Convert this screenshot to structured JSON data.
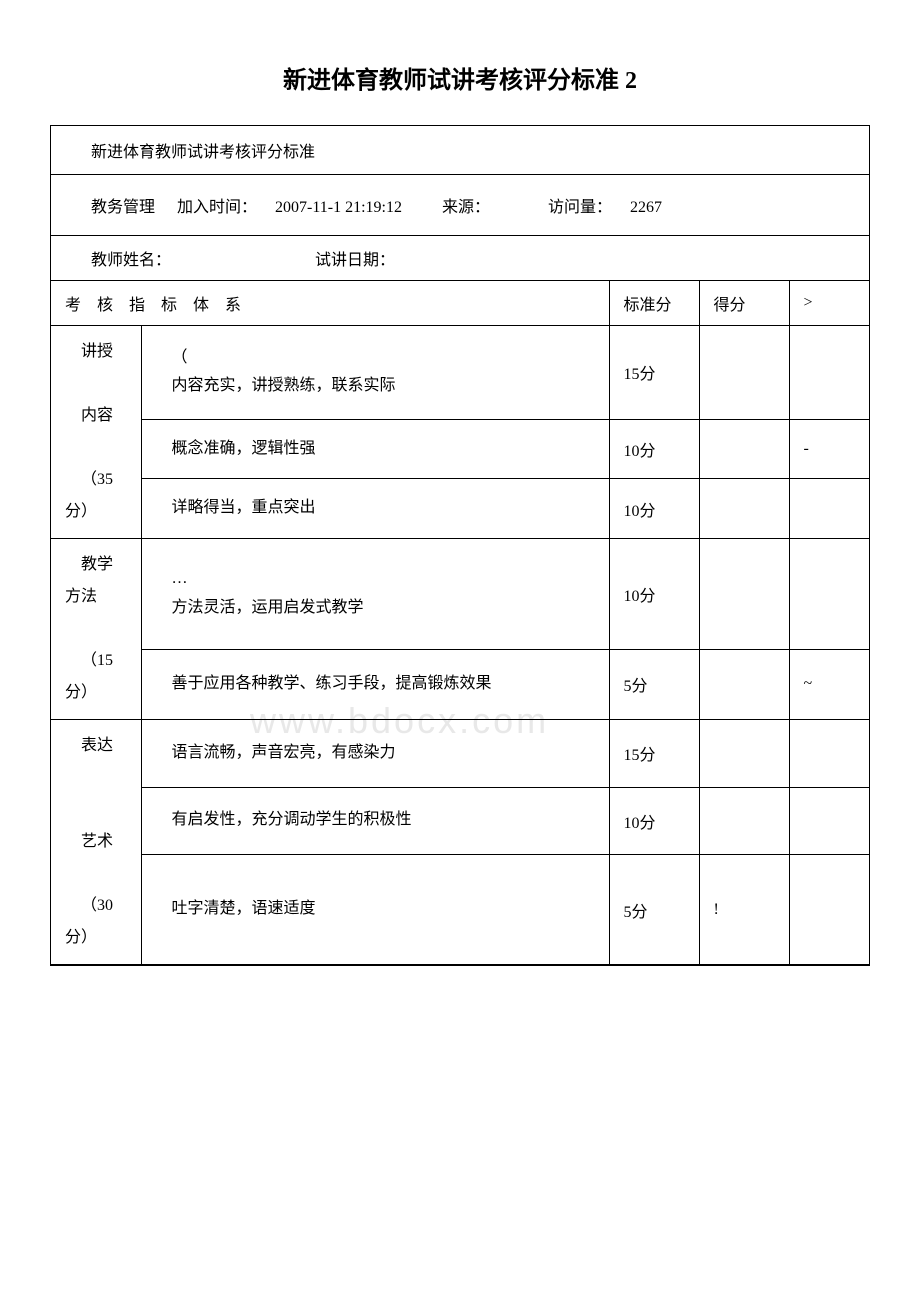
{
  "page_title": "新进体育教师试讲考核评分标准 2",
  "header_subtitle": "新进体育教师试讲考核评分标准",
  "meta": {
    "category": "教务管理",
    "time_label": "加入时间：",
    "time_value": "2007-11-1 21:19:12",
    "source_label": "来源：",
    "source_value": "",
    "visits_label": "访问量：",
    "visits_value": "2267"
  },
  "form": {
    "name_label": "教师姓名：",
    "date_label": "试讲日期："
  },
  "columns": {
    "system": "考 核 指 标 体 系",
    "standard": "标准分",
    "score": "得分",
    "extra": ">"
  },
  "categories": [
    {
      "name_line1": "讲授",
      "name_line2": "内容",
      "weight": "（35分）",
      "rows": [
        {
          "prefix": "（",
          "criterion": "内容充实，讲授熟练，联系实际",
          "score": "15分",
          "got": "",
          "extra": ""
        },
        {
          "prefix": "",
          "criterion": "概念准确，逻辑性强",
          "score": "10分",
          "got": "",
          "extra": "-"
        },
        {
          "prefix": "",
          "criterion": "详略得当，重点突出",
          "score": "10分",
          "got": "",
          "extra": ""
        }
      ]
    },
    {
      "name_line1": "教学方法",
      "name_line2": "",
      "weight": "（15分）",
      "rows": [
        {
          "prefix": "…",
          "criterion": "方法灵活，运用启发式教学",
          "score": "10分",
          "got": "",
          "extra": ""
        },
        {
          "prefix": "",
          "criterion": "善于应用各种教学、练习手段，提高锻炼效果",
          "score": "5分",
          "got": "",
          "extra": "~"
        }
      ]
    },
    {
      "name_line1": "表达",
      "name_line2": "艺术",
      "weight": "（30分）",
      "rows": [
        {
          "prefix": "",
          "criterion": "语言流畅，声音宏亮，有感染力",
          "score": "15分",
          "got": "",
          "extra": ""
        },
        {
          "prefix": "",
          "criterion": "有启发性，充分调动学生的积极性",
          "score": "10分",
          "got": "",
          "extra": ""
        },
        {
          "prefix": "",
          "criterion": "吐字清楚，语速适度",
          "score": "5分",
          "got": "!",
          "extra": ""
        }
      ]
    }
  ],
  "watermark": "www.bdocx.com",
  "colors": {
    "text": "#000000",
    "background": "#ffffff",
    "border": "#000000",
    "watermark": "#e8e8e8"
  }
}
